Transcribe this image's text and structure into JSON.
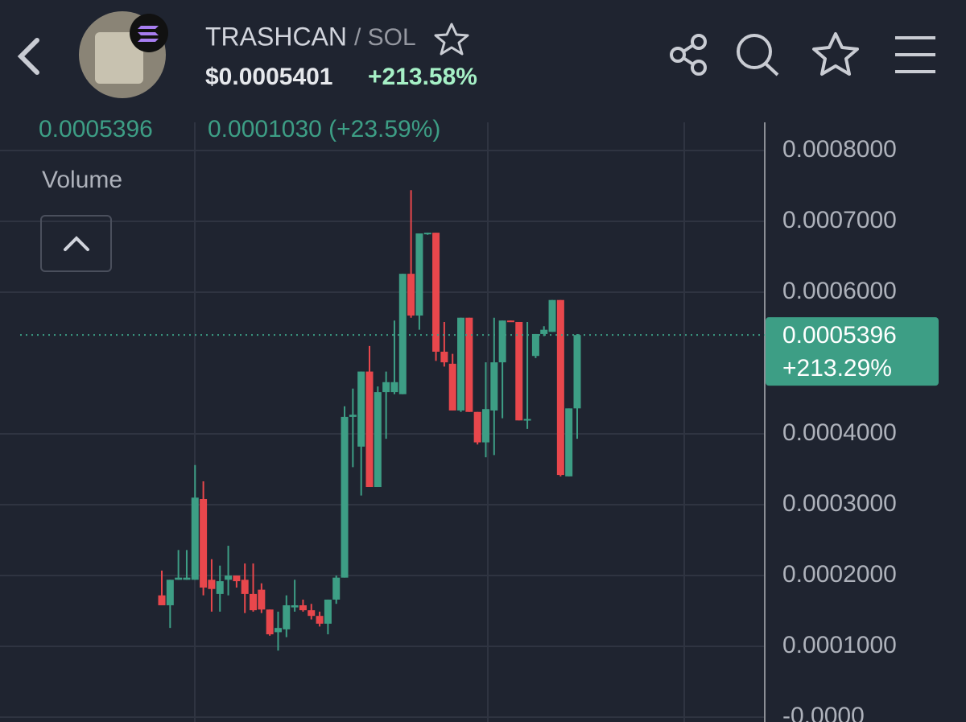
{
  "header": {
    "symbol": "TRASHCAN",
    "quote": "/ SOL",
    "price": "$0.0005401",
    "change": "+213.58%"
  },
  "chart_data": {
    "type": "candlestick",
    "legend_values": [
      "0.0005396",
      "0.0001030 (+23.59%)"
    ],
    "indicator": "Volume",
    "up_color": "#3d9e85",
    "down_color": "#e8474c",
    "open": [
      0.000172,
      0.000158,
      0.000194,
      0.000194,
      0.000194,
      0.000308,
      0.000194,
      0.000174,
      0.000194,
      0.0002,
      0.000194,
      0.000174,
      0.00018,
      0.000152,
      0.00012,
      0.000124,
      0.000155,
      0.000158,
      0.000151,
      0.000143,
      0.000132,
      0.000166,
      0.000197,
      0.000424,
      0.000382,
      0.000488,
      0.000325,
      0.000459,
      0.000459,
      0.000456,
      0.000626,
      0.000567,
      0.000683,
      0.000684,
      0.000516,
      0.000499,
      0.000433,
      0.000564,
      0.000431,
      0.000388,
      0.000433,
      0.000501,
      0.00056,
      0.000558,
      0.000419,
      0.00051,
      0.000541,
      0.000544,
      0.000589,
      0.00034,
      0.000436
    ],
    "high": [
      0.000207,
      0.000194,
      0.000236,
      0.000236,
      0.000356,
      0.000333,
      0.000223,
      0.000214,
      0.000242,
      0.0002,
      0.000217,
      0.000217,
      0.000189,
      0.000152,
      0.000149,
      0.000172,
      0.000194,
      0.000166,
      0.00016,
      0.000149,
      0.000166,
      0.0002,
      0.000439,
      0.000464,
      0.000488,
      0.000524,
      0.000467,
      0.000488,
      0.00056,
      0.000626,
      0.000744,
      0.000683,
      0.000684,
      0.000684,
      0.000558,
      0.000513,
      0.000564,
      0.000564,
      0.000431,
      0.000501,
      0.000564,
      0.00056,
      0.00056,
      0.000558,
      0.000558,
      0.000541,
      0.000552,
      0.000589,
      0.000589,
      0.000436,
      0.000541
    ],
    "low": [
      0.000158,
      0.000126,
      0.000194,
      0.000194,
      0.000194,
      0.000172,
      0.000149,
      0.000149,
      0.000172,
      0.000183,
      0.000147,
      0.000149,
      0.000147,
      0.000115,
      9.4e-05,
      0.000113,
      0.000149,
      0.000149,
      0.000138,
      0.000128,
      0.000117,
      0.00016,
      0.000197,
      0.000353,
      0.000313,
      0.000325,
      0.000325,
      0.000393,
      0.000456,
      0.000456,
      0.000564,
      0.000547,
      0.000681,
      0.000503,
      0.000495,
      0.000433,
      0.000431,
      0.000431,
      0.000385,
      0.000367,
      0.00037,
      0.000422,
      0.000558,
      0.000419,
      0.000407,
      0.000507,
      0.000538,
      0.000544,
      0.00034,
      0.00034,
      0.000393
    ],
    "close": [
      0.000158,
      0.000194,
      0.000197,
      0.000197,
      0.00031,
      0.000183,
      0.000181,
      0.000192,
      0.0002,
      0.000192,
      0.000174,
      0.000151,
      0.000152,
      0.000117,
      0.000126,
      0.000158,
      0.000158,
      0.000151,
      0.000143,
      0.000132,
      0.000166,
      0.000197,
      0.000424,
      0.000427,
      0.000488,
      0.000325,
      0.000459,
      0.000473,
      0.000473,
      0.000626,
      0.000567,
      0.000683,
      0.000684,
      0.000516,
      0.000501,
      0.000433,
      0.000564,
      0.000431,
      0.000388,
      0.000435,
      0.000501,
      0.00056,
      0.000558,
      0.000419,
      0.000421,
      0.000541,
      0.000547,
      0.000589,
      0.000342,
      0.000436,
      0.0005396
    ],
    "last_price": {
      "value": 0.0005396,
      "label": "0.0005396"
    },
    "last_change": "+213.29%",
    "ylim": [
      -6.8e-06,
      0.0008364
    ],
    "yticks": [
      {
        "value": 0.0008,
        "label": "0.0008000"
      },
      {
        "value": 0.0007,
        "label": "0.0007000"
      },
      {
        "value": 0.0006,
        "label": "0.0006000"
      },
      {
        "value": 0.0004,
        "label": "0.0004000"
      },
      {
        "value": 0.0003,
        "label": "0.0003000"
      },
      {
        "value": 0.0002,
        "label": "0.0002000"
      },
      {
        "value": 0.0001,
        "label": "0.0001000"
      },
      {
        "value": 0,
        "label": "-0.0000"
      }
    ],
    "grid": true
  }
}
